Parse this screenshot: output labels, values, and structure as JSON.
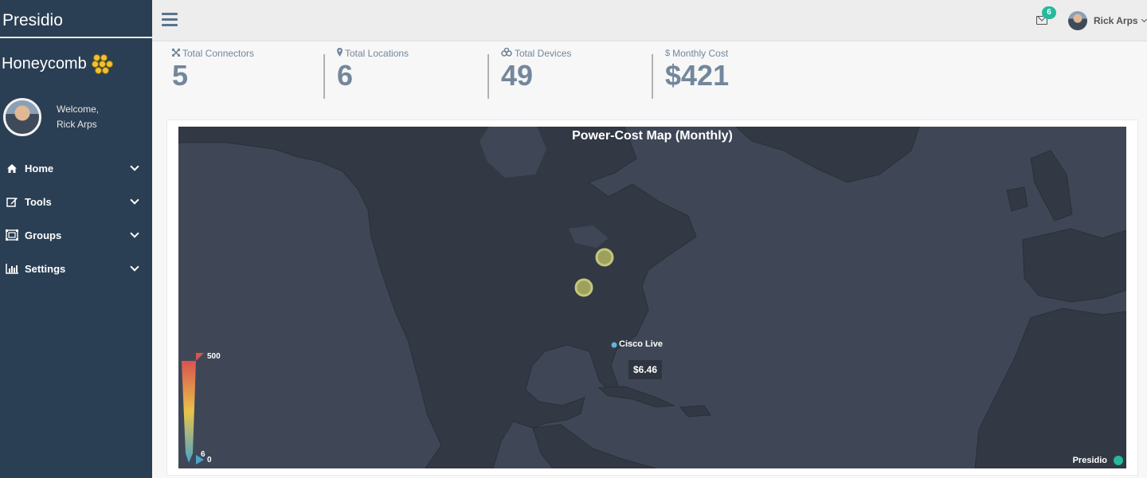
{
  "sidebar": {
    "brand": "Presidio",
    "app_name": "Honeycomb",
    "welcome": "Welcome,",
    "user_name": "Rick Arps",
    "items": [
      {
        "label": "Home",
        "icon": "home-icon"
      },
      {
        "label": "Tools",
        "icon": "edit-icon"
      },
      {
        "label": "Groups",
        "icon": "groups-icon"
      },
      {
        "label": "Settings",
        "icon": "bar-chart-icon"
      }
    ]
  },
  "topbar": {
    "mail_badge": "6",
    "user_name": "Rick Arps"
  },
  "stats": [
    {
      "label": "Total Connectors",
      "value": "5",
      "icon": "connectors-icon"
    },
    {
      "label": "Total Locations",
      "value": "6",
      "icon": "map-marker-icon"
    },
    {
      "label": "Total Devices",
      "value": "49",
      "icon": "devices-icon"
    },
    {
      "label": "Monthly Cost",
      "value": "$421",
      "icon": "dollar-icon"
    }
  ],
  "map": {
    "title": "Power-Cost Map (Monthly)",
    "point_label": "Cisco Live",
    "tooltip": "$6.46",
    "scale_max": "500",
    "scale_min": "0",
    "scale_marker": "6",
    "legend": "Presidio"
  },
  "colors": {
    "sidebar": "#2a3f54",
    "map_bg": "#3f4756",
    "land": "#323944",
    "accent": "#26b99a",
    "stat_text": "#73879c"
  }
}
